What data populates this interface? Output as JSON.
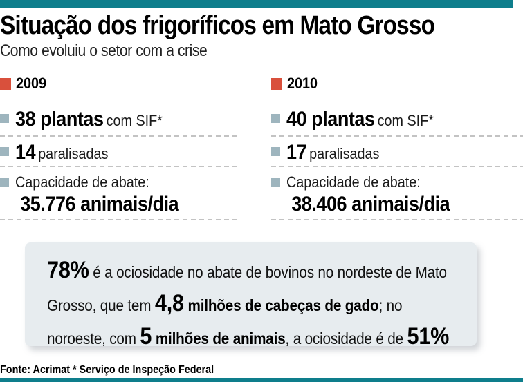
{
  "header": {
    "title": "Situação dos frigoríficos em Mato Grosso",
    "subtitle": "Como evoluiu o setor com a crise"
  },
  "columns": [
    {
      "year": "2009",
      "plants_value": "38 plantas",
      "plants_suffix": "com SIF*",
      "paralyzed_value": "14",
      "paralyzed_suffix": "paralisadas",
      "capacity_label": "Capacidade de abate:",
      "capacity_value": "35.776 animais/dia"
    },
    {
      "year": "2010",
      "plants_value": "40 plantas",
      "plants_suffix": "com SIF*",
      "paralyzed_value": "17",
      "paralyzed_suffix": "paralisadas",
      "capacity_label": "Capacidade de abate:",
      "capacity_value": "38.406 animais/dia"
    }
  ],
  "highlight_box": {
    "segments": [
      {
        "text": "78%",
        "style": "xl"
      },
      {
        "text": " é a ociosidade no abate de bovinos no nordeste de Mato Grosso, que tem ",
        "style": "light"
      },
      {
        "text": "4,8",
        "style": "xl"
      },
      {
        "text": " milhões de cabeças de gado",
        "style": "bold"
      },
      {
        "text": "; no noroeste, com ",
        "style": "light"
      },
      {
        "text": "5",
        "style": "xl"
      },
      {
        "text": " milhões de animais",
        "style": "bold"
      },
      {
        "text": ", a ociosidade é de ",
        "style": "light"
      },
      {
        "text": "51%",
        "style": "xl"
      }
    ]
  },
  "footer": {
    "text": "Fonte: Acrimat * Serviço de Inspeção Federal"
  },
  "colors": {
    "accent_teal": "#0e7e8c",
    "accent_red": "#d9503c",
    "bullet_gray": "#9eb5be",
    "box_background": "#e7ecef",
    "dash_gray": "#c3c3c3"
  },
  "chart_data": {
    "type": "table",
    "title": "Situação dos frigoríficos em Mato Grosso",
    "subtitle": "Como evoluiu o setor com a crise",
    "categories": [
      "2009",
      "2010"
    ],
    "series": [
      {
        "name": "Plantas com SIF",
        "values": [
          38,
          40
        ]
      },
      {
        "name": "Plantas paralisadas",
        "values": [
          14,
          17
        ]
      },
      {
        "name": "Capacidade de abate (animais/dia)",
        "values": [
          35776,
          38406
        ]
      }
    ],
    "annotations": [
      "78% é a ociosidade no abate de bovinos no nordeste de Mato Grosso, que tem 4,8 milhões de cabeças de gado",
      "No noroeste, com 5 milhões de animais, a ociosidade é de 51%"
    ],
    "source": "Fonte: Acrimat * Serviço de Inspeção Federal"
  }
}
